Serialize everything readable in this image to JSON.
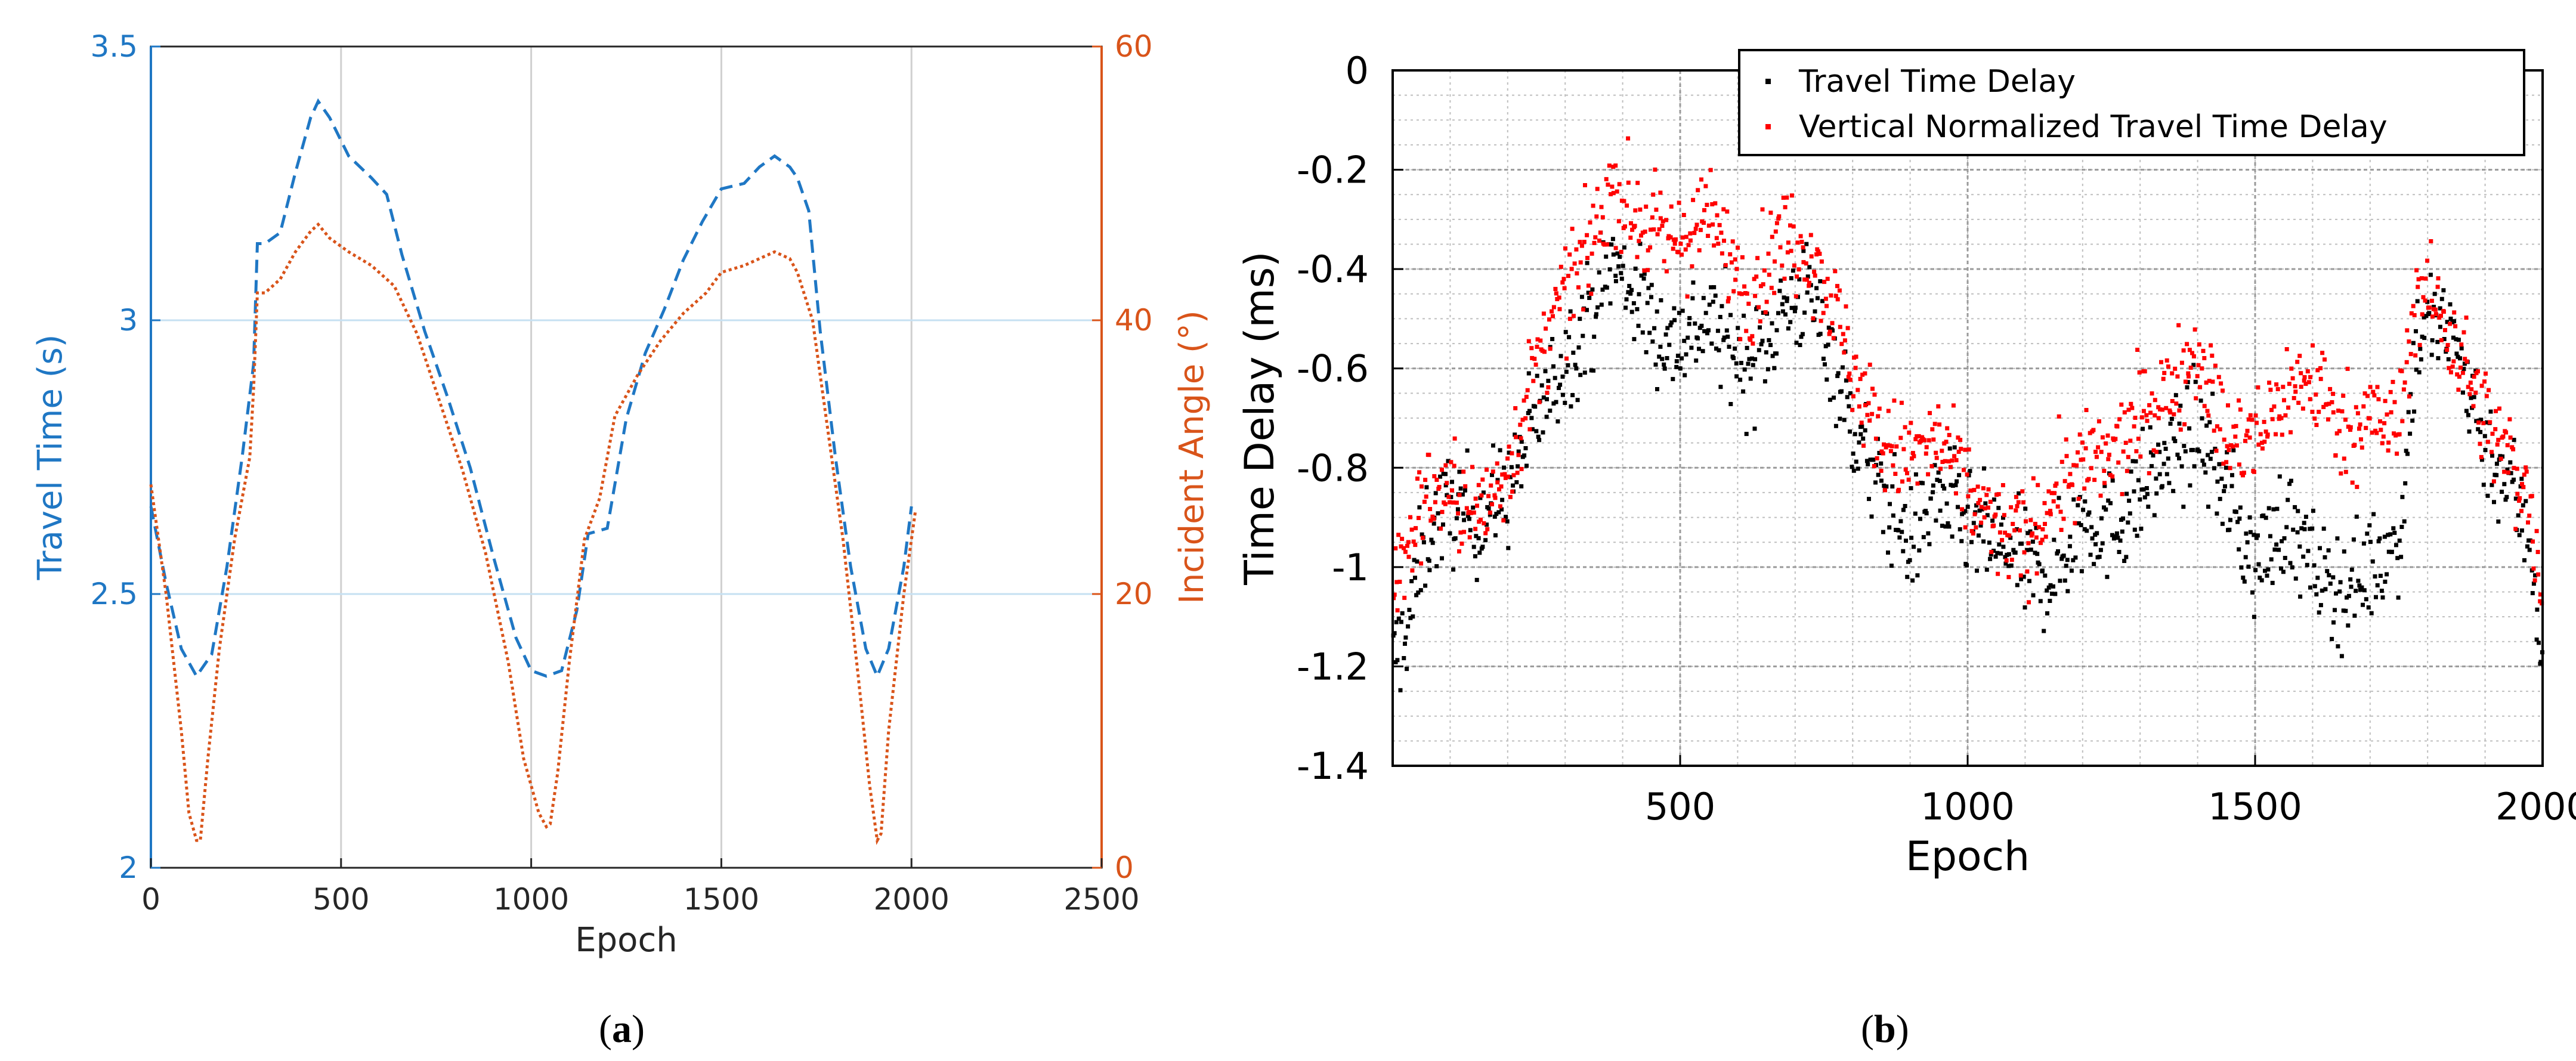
{
  "captions": {
    "a": {
      "open": "(",
      "letter": "a",
      "close": ")"
    },
    "b": {
      "open": "(",
      "letter": "b",
      "close": ")"
    }
  },
  "colors": {
    "travel_time": "#1f77c4",
    "incident_angle": "#d9541a",
    "delay": "#000000",
    "normalized": "#ff0000",
    "grid": "#c8c8c8"
  },
  "chart_data": [
    {
      "id": "a",
      "type": "line",
      "title": "",
      "xlabel": "Epoch",
      "ylabel": "Travel Time (s)",
      "y2label": "Incident Angle (°)",
      "xlim": [
        0,
        2500
      ],
      "ylim": [
        2,
        3.5
      ],
      "y2lim": [
        0,
        60
      ],
      "xticks": [
        "0",
        "500",
        "1000",
        "1500",
        "2000",
        "2500"
      ],
      "yticks": [
        "2",
        "2.5",
        "3",
        "3.5"
      ],
      "y2ticks": [
        "0",
        "20",
        "40",
        "60"
      ],
      "grid": "y-major blue at 2.5 and 3; x-major gray",
      "series": [
        {
          "name": "Travel Time",
          "axis": "left",
          "style": "dashed",
          "x": [
            0,
            40,
            80,
            120,
            160,
            200,
            240,
            270,
            280,
            300,
            340,
            380,
            420,
            440,
            470,
            520,
            580,
            620,
            660,
            720,
            780,
            840,
            900,
            960,
            1000,
            1040,
            1080,
            1120,
            1150,
            1200,
            1250,
            1300,
            1350,
            1400,
            1450,
            1500,
            1560,
            1600,
            1640,
            1680,
            1700,
            1730,
            1760,
            1800,
            1840,
            1880,
            1910,
            1940,
            1980,
            2000
          ],
          "y": [
            2.66,
            2.52,
            2.4,
            2.35,
            2.39,
            2.55,
            2.75,
            2.92,
            3.14,
            3.14,
            3.16,
            3.27,
            3.37,
            3.4,
            3.37,
            3.3,
            3.26,
            3.23,
            3.12,
            2.98,
            2.86,
            2.73,
            2.57,
            2.42,
            2.36,
            2.35,
            2.36,
            2.47,
            2.61,
            2.62,
            2.82,
            2.94,
            3.02,
            3.11,
            3.18,
            3.24,
            3.25,
            3.28,
            3.3,
            3.28,
            3.26,
            3.2,
            2.98,
            2.75,
            2.55,
            2.4,
            2.35,
            2.4,
            2.55,
            2.66
          ]
        },
        {
          "name": "Incident Angle",
          "axis": "right",
          "style": "dotted",
          "x": [
            0,
            40,
            80,
            100,
            120,
            130,
            150,
            180,
            220,
            260,
            270,
            280,
            300,
            340,
            380,
            420,
            440,
            470,
            520,
            580,
            640,
            700,
            760,
            820,
            880,
            940,
            980,
            1020,
            1040,
            1050,
            1070,
            1100,
            1140,
            1180,
            1220,
            1280,
            1340,
            1400,
            1460,
            1500,
            1560,
            1600,
            1640,
            1680,
            1700,
            1740,
            1780,
            1820,
            1860,
            1890,
            1910,
            1920,
            1940,
            1980,
            2010
          ],
          "y": [
            28,
            20,
            10,
            4,
            2,
            2,
            8,
            16,
            24,
            30,
            35,
            42,
            42,
            43,
            45,
            46.5,
            47,
            46,
            45,
            44,
            42.5,
            39,
            34,
            29,
            23,
            15,
            8,
            4,
            3,
            3.2,
            7,
            15,
            24,
            27,
            33,
            36,
            38.5,
            40.5,
            42,
            43.5,
            44,
            44.5,
            45,
            44.5,
            43.5,
            40,
            32,
            24,
            14,
            6,
            2,
            2.5,
            10,
            20,
            26
          ]
        }
      ]
    },
    {
      "id": "b",
      "type": "scatter",
      "title": "",
      "xlabel": "Epoch",
      "ylabel": "Time Delay (ms)",
      "xlim": [
        0,
        2000
      ],
      "ylim": [
        -1.4,
        0
      ],
      "xticks": [
        "500",
        "1000",
        "1500",
        "2000"
      ],
      "yticks": [
        "0",
        "-0.2",
        "-0.4",
        "-0.6",
        "-0.8",
        "-1",
        "-1.2",
        "-1.4"
      ],
      "grid": "major and minor dotted",
      "legend": {
        "position": "top-right",
        "entries": [
          "Travel Time Delay",
          "Vertical Normalized Travel Time Delay"
        ]
      },
      "series": [
        {
          "name": "Travel Time Delay",
          "color": "#000000",
          "count": 1000,
          "trend_x": [
            0,
            30,
            60,
            100,
            150,
            200,
            250,
            300,
            350,
            380,
            420,
            480,
            550,
            620,
            680,
            720,
            760,
            800,
            850,
            900,
            950,
            1000,
            1050,
            1100,
            1150,
            1200,
            1250,
            1300,
            1350,
            1400,
            1450,
            1500,
            1550,
            1600,
            1650,
            1700,
            1750,
            1780,
            1800,
            1850,
            1900,
            1950,
            1980,
            2000
          ],
          "trend_y": [
            -1.2,
            -1.1,
            -0.93,
            -0.88,
            -0.9,
            -0.85,
            -0.7,
            -0.58,
            -0.48,
            -0.38,
            -0.45,
            -0.55,
            -0.5,
            -0.6,
            -0.48,
            -0.45,
            -0.55,
            -0.72,
            -0.85,
            -0.95,
            -0.85,
            -0.92,
            -0.95,
            -1.0,
            -1.02,
            -0.9,
            -0.92,
            -0.85,
            -0.78,
            -0.72,
            -0.85,
            -1.0,
            -0.9,
            -1.0,
            -1.05,
            -1.0,
            -0.95,
            -0.55,
            -0.5,
            -0.55,
            -0.75,
            -0.85,
            -0.95,
            -1.2
          ],
          "spread": 0.07
        },
        {
          "name": "Vertical Normalized Travel Time Delay",
          "color": "#ff0000",
          "count": 1000,
          "trend_x": [
            0,
            30,
            60,
            100,
            150,
            200,
            250,
            300,
            350,
            380,
            420,
            480,
            550,
            620,
            680,
            720,
            760,
            800,
            850,
            900,
            950,
            1000,
            1050,
            1100,
            1150,
            1200,
            1250,
            1300,
            1350,
            1400,
            1450,
            1500,
            1550,
            1600,
            1650,
            1700,
            1750,
            1780,
            1800,
            1850,
            1900,
            1950,
            1980,
            2000
          ],
          "trend_y": [
            -1.05,
            -0.95,
            -0.85,
            -0.85,
            -0.9,
            -0.8,
            -0.6,
            -0.45,
            -0.35,
            -0.22,
            -0.3,
            -0.35,
            -0.3,
            -0.45,
            -0.33,
            -0.35,
            -0.45,
            -0.6,
            -0.75,
            -0.78,
            -0.75,
            -0.85,
            -0.92,
            -0.95,
            -0.85,
            -0.8,
            -0.78,
            -0.7,
            -0.65,
            -0.55,
            -0.75,
            -0.75,
            -0.65,
            -0.62,
            -0.72,
            -0.7,
            -0.72,
            -0.45,
            -0.45,
            -0.55,
            -0.7,
            -0.8,
            -0.88,
            -1.05
          ],
          "spread": 0.065
        }
      ]
    }
  ]
}
